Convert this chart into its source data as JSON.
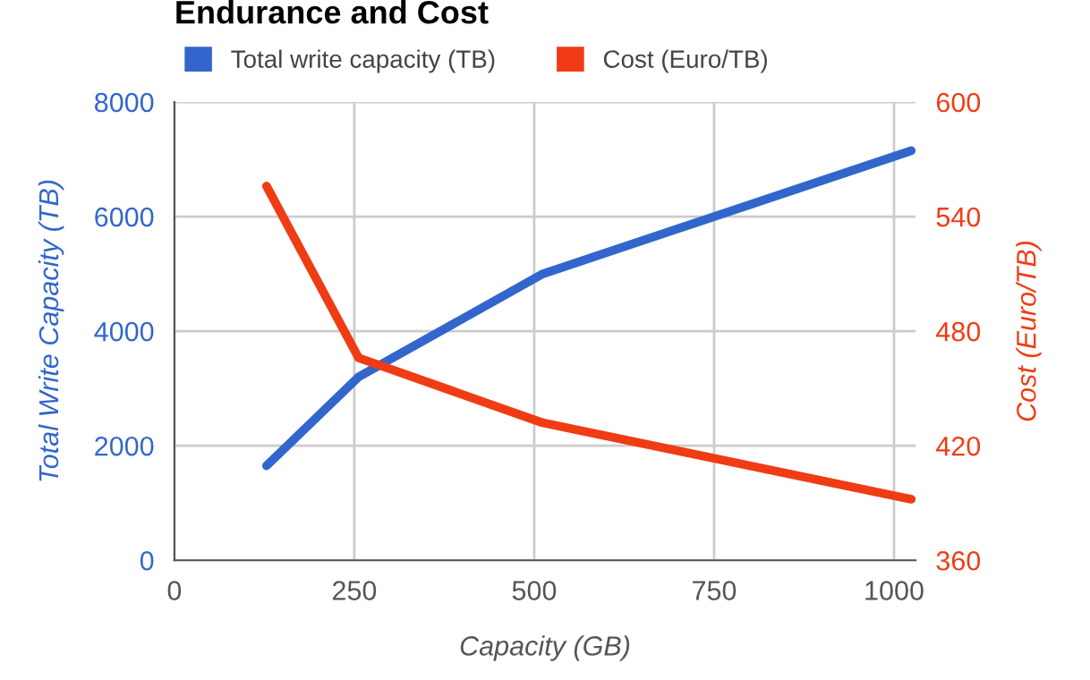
{
  "chart_data": {
    "type": "line",
    "title": "Endurance and Cost",
    "xlabel": "Capacity (GB)",
    "ylabel": "Total Write Capacity (TB)",
    "y2label": "Cost (Euro/TB)",
    "series": [
      {
        "name": "Total write capacity (TB)",
        "color": "#3366cc",
        "x": [
          128,
          256,
          512,
          1024
        ],
        "values": [
          1650,
          3200,
          5000,
          7150
        ]
      },
      {
        "name": "Cost (Euro/TB)",
        "color": "#f03c14",
        "axis": "y2",
        "x": [
          128,
          256,
          512,
          1024
        ],
        "values": [
          556,
          466,
          432,
          392
        ]
      }
    ],
    "xlim": [
      0,
      1030
    ],
    "xticks": [
      0,
      250,
      500,
      750,
      1000
    ],
    "ylim": [
      0,
      8000
    ],
    "yticks": [
      0,
      2000,
      4000,
      6000,
      8000
    ],
    "y2lim": [
      360,
      600
    ],
    "y2ticks": [
      360,
      420,
      480,
      540,
      600
    ],
    "grid": true,
    "legend": "top",
    "marker": "none",
    "line_style": "solid"
  }
}
